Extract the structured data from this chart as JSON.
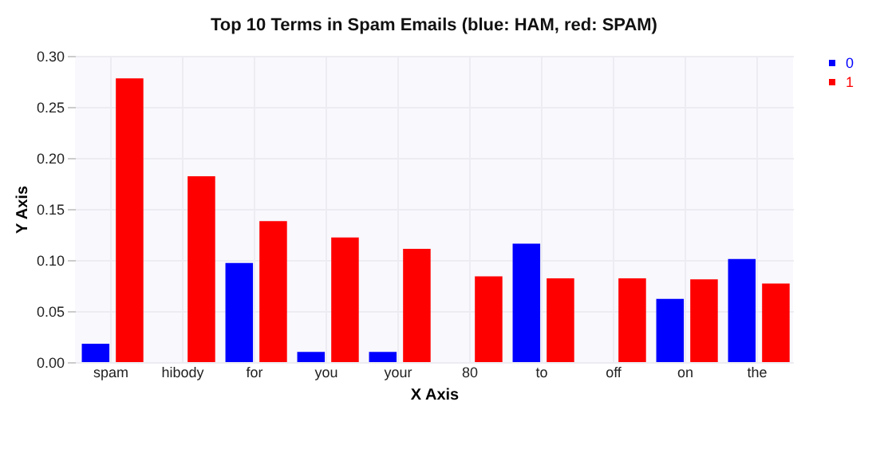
{
  "chart_data": {
    "type": "bar",
    "title": "Top 10 Terms in Spam Emails (blue: HAM, red: SPAM)",
    "xlabel": "X Axis",
    "ylabel": "Y Axis",
    "categories": [
      "spam",
      "hibody",
      "for",
      "you",
      "your",
      "80",
      "to",
      "off",
      "on",
      "the"
    ],
    "series": [
      {
        "name": "0",
        "color": "#0000ff",
        "values": [
          0.018,
          0,
          0.097,
          0.01,
          0.01,
          0,
          0.116,
          0,
          0.062,
          0.101
        ]
      },
      {
        "name": "1",
        "color": "#ff0000",
        "values": [
          0.278,
          0.182,
          0.138,
          0.122,
          0.111,
          0.084,
          0.082,
          0.082,
          0.081,
          0.077
        ]
      }
    ],
    "ylim": [
      0,
      0.3
    ],
    "yticks": [
      {
        "value": 0,
        "label": "0.00"
      },
      {
        "value": 0.05,
        "label": "0.05"
      },
      {
        "value": 0.1,
        "label": "0.10"
      },
      {
        "value": 0.15,
        "label": "0.15"
      },
      {
        "value": 0.2,
        "label": "0.20"
      },
      {
        "value": 0.25,
        "label": "0.25"
      },
      {
        "value": 0.3,
        "label": "0.30"
      }
    ],
    "grid": true,
    "legend": "top right"
  }
}
